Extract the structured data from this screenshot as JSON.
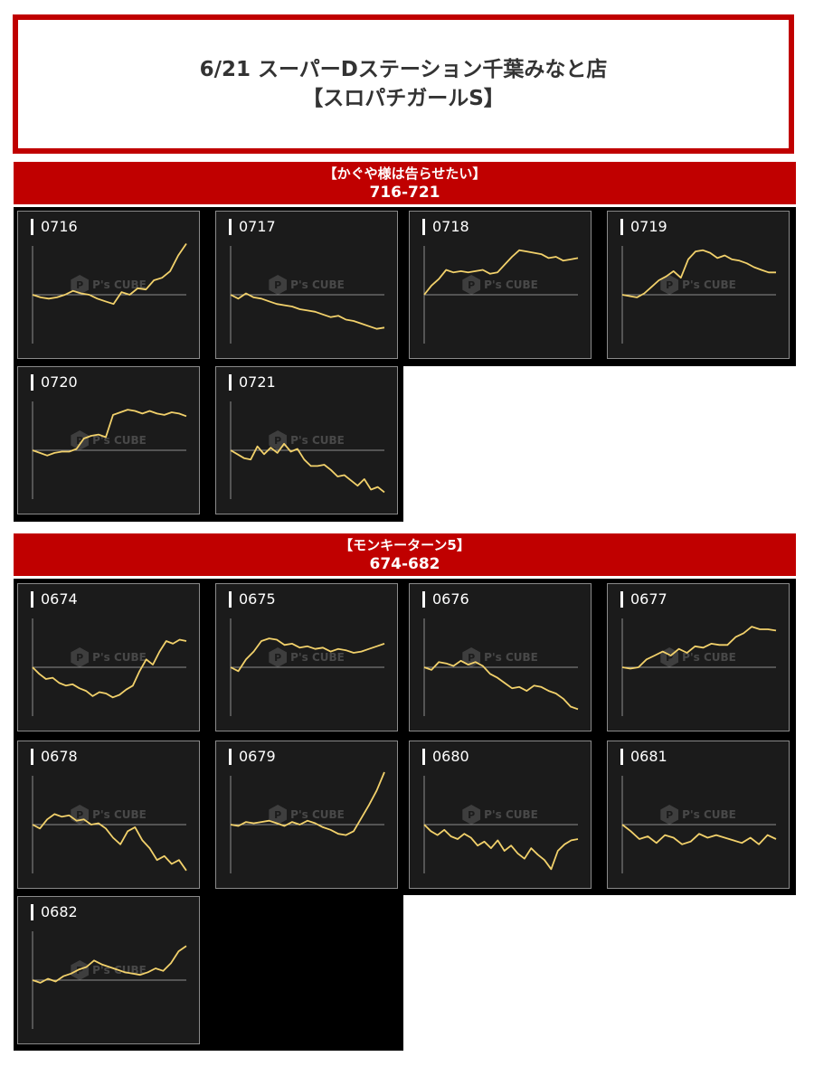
{
  "header": {
    "title_line1": "6/21 スーパーDステーション千葉みなと店",
    "title_line2": "【スロパチガールS】"
  },
  "sections": [
    {
      "name": "【かぐや様は告らせたい】",
      "range": "716-721"
    },
    {
      "name": "【モンキーターン5】",
      "range": "674-682"
    }
  ],
  "watermark": {
    "icon": "hexagon-logo-icon",
    "text": "P's CUBE"
  },
  "colors": {
    "accent": "#c00000",
    "line": "#f2d16b",
    "panel": "#1b1b1b"
  },
  "chart_data": [
    {
      "type": "line",
      "title": "0716",
      "values": [
        0,
        -2,
        -3,
        -2,
        0,
        3,
        1,
        0,
        -3,
        -5,
        -7,
        2,
        0,
        5,
        4,
        11,
        13,
        18,
        30,
        39
      ]
    },
    {
      "type": "line",
      "title": "0717",
      "values": [
        0,
        -3,
        1,
        -2,
        -3,
        -5,
        -7,
        -8,
        -9,
        -11,
        -12,
        -13,
        -15,
        -17,
        -16,
        -19,
        -20,
        -22,
        -24,
        -26,
        -25
      ]
    },
    {
      "type": "line",
      "title": "0718",
      "values": [
        0,
        7,
        12,
        19,
        17,
        18,
        17,
        18,
        19,
        16,
        17,
        23,
        29,
        34,
        33,
        32,
        31,
        28,
        29,
        26,
        27,
        28
      ]
    },
    {
      "type": "line",
      "title": "0719",
      "values": [
        0,
        -1,
        -2,
        1,
        6,
        11,
        14,
        18,
        13,
        27,
        33,
        34,
        32,
        28,
        30,
        27,
        26,
        24,
        21,
        19,
        17,
        17
      ]
    },
    {
      "type": "line",
      "title": "0720",
      "values": [
        0,
        -2,
        -4,
        -2,
        -1,
        -1,
        1,
        9,
        11,
        12,
        10,
        27,
        29,
        31,
        30,
        28,
        30,
        28,
        27,
        29,
        28,
        26
      ]
    },
    {
      "type": "line",
      "title": "0721",
      "values": [
        0,
        -3,
        -6,
        -7,
        3,
        -3,
        2,
        -2,
        5,
        -1,
        1,
        -7,
        -12,
        -12,
        -11,
        -15,
        -20,
        -19,
        -23,
        -27,
        -22,
        -30,
        -28,
        -32
      ]
    },
    {
      "type": "line",
      "title": "0674",
      "values": [
        0,
        -5,
        -9,
        -8,
        -12,
        -14,
        -13,
        -16,
        -18,
        -22,
        -19,
        -20,
        -23,
        -21,
        -17,
        -14,
        -3,
        6,
        2,
        12,
        20,
        18,
        21,
        20
      ]
    },
    {
      "type": "line",
      "title": "0675",
      "values": [
        0,
        -3,
        6,
        12,
        20,
        22,
        21,
        17,
        18,
        15,
        16,
        14,
        15,
        12,
        14,
        13,
        11,
        12,
        14,
        16,
        18
      ]
    },
    {
      "type": "line",
      "title": "0676",
      "values": [
        0,
        -2,
        4,
        3,
        1,
        5,
        2,
        4,
        1,
        -5,
        -8,
        -12,
        -16,
        -15,
        -18,
        -14,
        -15,
        -18,
        -20,
        -24,
        -30,
        -32
      ]
    },
    {
      "type": "line",
      "title": "0677",
      "values": [
        0,
        -1,
        0,
        6,
        9,
        12,
        9,
        14,
        11,
        16,
        15,
        18,
        17,
        17,
        23,
        26,
        31,
        29,
        29,
        28
      ]
    },
    {
      "type": "line",
      "title": "0678",
      "values": [
        0,
        -3,
        4,
        8,
        6,
        7,
        3,
        4,
        0,
        1,
        -3,
        -10,
        -15,
        -5,
        -2,
        -12,
        -18,
        -27,
        -24,
        -30,
        -27,
        -35
      ]
    },
    {
      "type": "line",
      "title": "0679",
      "values": [
        0,
        -1,
        2,
        1,
        2,
        3,
        1,
        -1,
        2,
        0,
        3,
        1,
        -2,
        -4,
        -7,
        -8,
        -5,
        5,
        15,
        26,
        40
      ]
    },
    {
      "type": "line",
      "title": "0680",
      "values": [
        0,
        -5,
        -8,
        -4,
        -9,
        -11,
        -7,
        -10,
        -16,
        -13,
        -18,
        -12,
        -20,
        -16,
        -22,
        -26,
        -18,
        -23,
        -27,
        -34,
        -20,
        -15,
        -12,
        -11
      ]
    },
    {
      "type": "line",
      "title": "0681",
      "values": [
        0,
        -5,
        -11,
        -9,
        -14,
        -8,
        -10,
        -15,
        -13,
        -7,
        -10,
        -8,
        -10,
        -12,
        -14,
        -10,
        -15,
        -8,
        -11
      ]
    },
    {
      "type": "line",
      "title": "0682",
      "values": [
        0,
        -2,
        1,
        -1,
        3,
        5,
        8,
        10,
        15,
        12,
        10,
        8,
        6,
        5,
        4,
        6,
        9,
        7,
        13,
        22,
        26
      ]
    }
  ]
}
